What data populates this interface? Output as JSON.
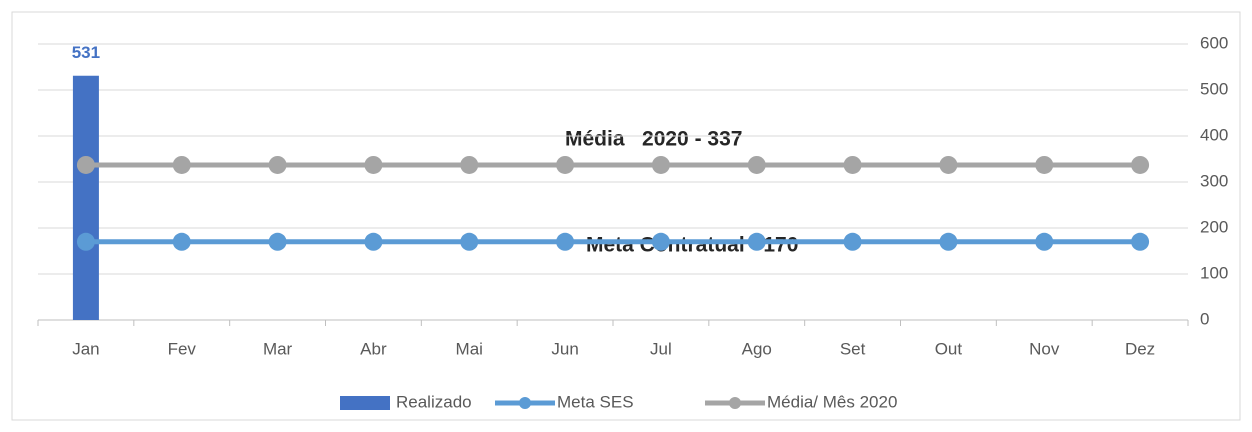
{
  "chart_data": {
    "type": "bar",
    "categories": [
      "Jan",
      "Fev",
      "Mar",
      "Abr",
      "Mai",
      "Jun",
      "Jul",
      "Ago",
      "Set",
      "Out",
      "Nov",
      "Dez"
    ],
    "series": [
      {
        "name": "Realizado",
        "type": "bar",
        "color": "#4472c4",
        "data_labels": true,
        "values": [
          531,
          null,
          null,
          null,
          null,
          null,
          null,
          null,
          null,
          null,
          null,
          null
        ]
      },
      {
        "name": "Meta SES",
        "type": "line",
        "color": "#5b9bd5",
        "values": [
          170,
          170,
          170,
          170,
          170,
          170,
          170,
          170,
          170,
          170,
          170,
          170
        ]
      },
      {
        "name": "Média/ Mês 2020",
        "type": "line",
        "color": "#a5a5a5",
        "values": [
          337,
          337,
          337,
          337,
          337,
          337,
          337,
          337,
          337,
          337,
          337,
          337
        ]
      }
    ],
    "annotations": [
      "Média   2020 - 337",
      "Meta Contratual - 170"
    ],
    "ylim": [
      0,
      600
    ],
    "yticks": [
      0,
      100,
      200,
      300,
      400,
      500,
      600
    ],
    "y_axis_side": "right",
    "grid": true,
    "legend": "bottom"
  }
}
